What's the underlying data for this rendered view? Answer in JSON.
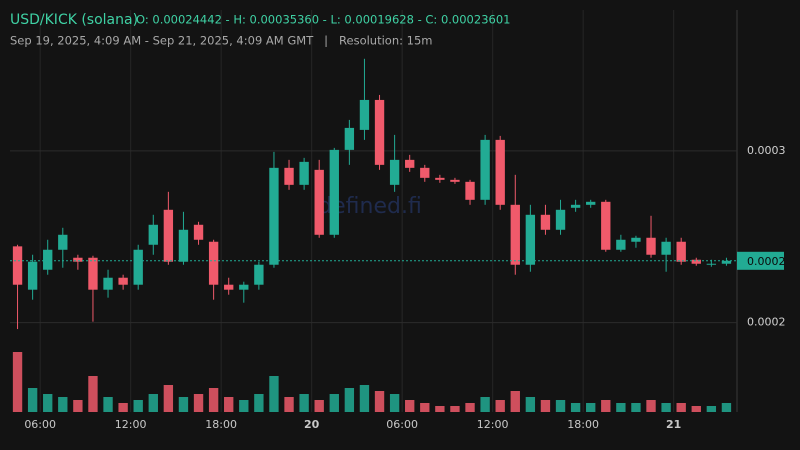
{
  "chart_data": {
    "type": "candlestick",
    "title": "USD/KICK (solana)",
    "ohlc_summary": "O: 0.00024442 - H: 0.00035360 - L: 0.00019628 - C: 0.00023601",
    "subtitle": "Sep 19, 2025, 4:09 AM - Sep 21, 2025, 4:09 AM GMT   |   Resolution: 15m",
    "watermark": "defined.fi",
    "up_color": "#22ab94",
    "down_color": "#f05a6b",
    "xlim": [
      4,
      52.2
    ],
    "xticks": [
      {
        "value": 6,
        "label": "06:00"
      },
      {
        "value": 12,
        "label": "12:00"
      },
      {
        "value": 18,
        "label": "18:00"
      },
      {
        "value": 24,
        "label": "20"
      },
      {
        "value": 30,
        "label": "06:00"
      },
      {
        "value": 36,
        "label": "12:00"
      },
      {
        "value": 42,
        "label": "18:00"
      },
      {
        "value": 48,
        "label": "21"
      }
    ],
    "ylim": [
      0.000148,
      0.000382
    ],
    "yticks": [
      {
        "value": 0.0003,
        "label": "0.0003"
      },
      {
        "value": 0.0002,
        "label": "0.0002"
      }
    ],
    "last_price": {
      "value": 0.00023601,
      "label": "0.0002"
    },
    "grid": true,
    "x": [
      4.5,
      5.5,
      6.5,
      7.5,
      8.5,
      9.5,
      10.5,
      11.5,
      12.5,
      13.5,
      14.5,
      15.5,
      16.5,
      17.5,
      18.5,
      19.5,
      20.5,
      21.5,
      22.5,
      23.5,
      24.5,
      25.5,
      26.5,
      27.5,
      28.5,
      29.5,
      30.5,
      31.5,
      32.5,
      33.5,
      34.5,
      35.5,
      36.5,
      37.5,
      38.5,
      39.5,
      40.5,
      41.5,
      42.5,
      43.5,
      44.5,
      45.5,
      46.5,
      47.5,
      48.5,
      49.5,
      50.5,
      51.5
    ],
    "candles": [
      [
        0.00024442,
        0.00024535,
        0.00019628,
        0.00022209
      ],
      [
        0.00021919,
        0.00023954,
        0.00021337,
        0.00023547
      ],
      [
        0.00023081,
        0.00024826,
        0.00022791,
        0.00024244
      ],
      [
        0.00024244,
        0.00025523,
        0.00023198,
        0.00025116
      ],
      [
        0.00023779,
        0.00023954,
        0.00023081,
        0.00023547
      ],
      [
        0.00023779,
        0.00023895,
        0.00020058,
        0.00021919
      ],
      [
        0.00021919,
        0.00023081,
        0.00021454,
        0.00022616
      ],
      [
        0.00022616,
        0.00022791,
        0.00021919,
        0.00022209
      ],
      [
        0.00022209,
        0.00024535,
        0.00021919,
        0.00024244
      ],
      [
        0.00024535,
        0.00026279,
        0.00023954,
        0.00025698
      ],
      [
        0.0002657,
        0.00027616,
        0.00023372,
        0.00023547
      ],
      [
        0.00023547,
        0.00026453,
        0.00023372,
        0.00025407
      ],
      [
        0.00025698,
        0.00025872,
        0.00024535,
        0.00024826
      ],
      [
        0.0002471,
        0.00024826,
        0.00021337,
        0.00022209
      ],
      [
        0.00022209,
        0.00022616,
        0.00021628,
        0.00021919
      ],
      [
        0.00021919,
        0.00022384,
        0.00021163,
        0.00022209
      ],
      [
        0.00022209,
        0.00023547,
        0.00021919,
        0.00023372
      ],
      [
        0.00023372,
        0.00029942,
        0.00023198,
        0.00029012
      ],
      [
        0.00029012,
        0.00029477,
        0.00027733,
        0.00028023
      ],
      [
        0.00028023,
        0.00029593,
        0.00027733,
        0.0002936
      ],
      [
        0.00028895,
        0.00029477,
        0.00024942,
        0.00025116
      ],
      [
        0.00025116,
        0.00030174,
        0.00024942,
        0.00030058
      ],
      [
        0.00030058,
        0.00031802,
        0.00029186,
        0.00031337
      ],
      [
        0.00031221,
        0.0003536,
        0.0003064,
        0.00032965
      ],
      [
        0.00032965,
        0.00033256,
        0.00028895,
        0.00029186
      ],
      [
        0.00028023,
        0.0003093,
        0.00027616,
        0.00029477
      ],
      [
        0.00029477,
        0.00029767,
        0.00028779,
        0.00029012
      ],
      [
        0.00029012,
        0.00029186,
        0.00028198,
        0.0002843
      ],
      [
        0.0002843,
        0.00028605,
        0.0002814,
        0.00028314
      ],
      [
        0.00028314,
        0.0002843,
        0.00028081,
        0.00028198
      ],
      [
        0.00028198,
        0.00028314,
        0.0002686,
        0.00027151
      ],
      [
        0.00027151,
        0.0003093,
        0.0002686,
        0.0003064
      ],
      [
        0.0003064,
        0.00030872,
        0.0002657,
        0.0002686
      ],
      [
        0.0002686,
        0.00028605,
        0.00022791,
        0.00023372
      ],
      [
        0.00023372,
        0.0002686,
        0.00022965,
        0.00026279
      ],
      [
        0.00026279,
        0.0002686,
        0.00025116,
        0.00025407
      ],
      [
        0.00025407,
        0.00027151,
        0.00025116,
        0.0002657
      ],
      [
        0.00026686,
        0.00027151,
        0.00026453,
        0.0002686
      ],
      [
        0.0002686,
        0.00027151,
        0.00026686,
        0.00027035
      ],
      [
        0.00027035,
        0.00027151,
        0.00024128,
        0.00024244
      ],
      [
        0.00024244,
        0.00025116,
        0.00024128,
        0.00024826
      ],
      [
        0.0002471,
        0.00025058,
        0.0002436,
        0.00024942
      ],
      [
        0.00024942,
        0.00026221,
        0.00023779,
        0.00023954
      ],
      [
        0.00023954,
        0.00024942,
        0.00022965,
        0.0002471
      ],
      [
        0.0002471,
        0.00024942,
        0.00023372,
        0.00023547
      ],
      [
        0.00023663,
        0.00023779,
        0.00023314,
        0.0002343
      ],
      [
        0.0002343,
        0.00023663,
        0.00023256,
        0.0002343
      ],
      [
        0.0002343,
        0.00023779,
        0.00023314,
        0.00023601
      ]
    ],
    "volume_lim": [
      0,
      100
    ],
    "volume": [
      100,
      40,
      30,
      25,
      20,
      60,
      25,
      15,
      20,
      30,
      45,
      25,
      30,
      40,
      25,
      20,
      30,
      60,
      25,
      30,
      20,
      30,
      40,
      45,
      35,
      30,
      20,
      15,
      10,
      10,
      15,
      25,
      20,
      35,
      25,
      20,
      20,
      15,
      15,
      20,
      15,
      15,
      20,
      15,
      15,
      10,
      10,
      15
    ]
  }
}
